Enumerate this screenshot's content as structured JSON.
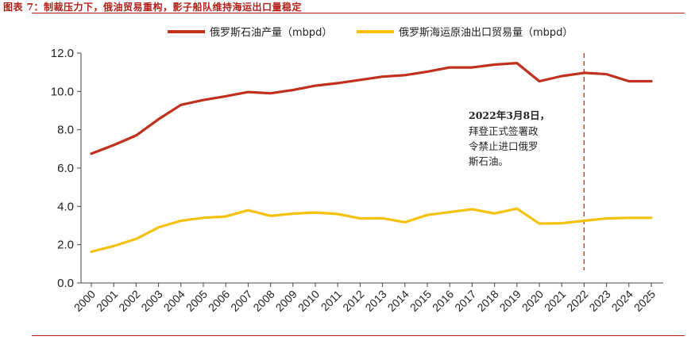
{
  "figure": {
    "title": "图表 7：制裁压力下，俄油贸易重构，影子船队维持海运出口量稳定"
  },
  "chart_data": {
    "type": "line",
    "x": [
      "2000",
      "2001",
      "2002",
      "2003",
      "2004",
      "2005",
      "2006",
      "2007",
      "2008",
      "2009",
      "2010",
      "2011",
      "2012",
      "2013",
      "2014",
      "2015",
      "2016",
      "2017",
      "2018",
      "2019",
      "2020",
      "2021",
      "2022",
      "2023",
      "2024",
      "2025"
    ],
    "series": [
      {
        "name": "俄罗斯石油产量（mbpd）",
        "color": "#c0301c",
        "values": [
          6.75,
          7.2,
          7.7,
          8.55,
          9.3,
          9.55,
          9.75,
          9.97,
          9.9,
          10.07,
          10.3,
          10.43,
          10.6,
          10.77,
          10.85,
          11.03,
          11.25,
          11.25,
          11.4,
          11.48,
          10.53,
          10.8,
          10.97,
          10.9,
          10.53,
          10.53
        ]
      },
      {
        "name": "俄罗斯海运原油出口贸易量（mbpd）",
        "color": "#f4c20d",
        "values": [
          1.63,
          1.93,
          2.3,
          2.9,
          3.25,
          3.4,
          3.47,
          3.8,
          3.5,
          3.62,
          3.68,
          3.6,
          3.37,
          3.38,
          3.17,
          3.55,
          3.7,
          3.85,
          3.63,
          3.88,
          3.1,
          3.12,
          3.25,
          3.37,
          3.4,
          3.4
        ]
      }
    ],
    "y_ticks": [
      "0.0",
      "2.0",
      "4.0",
      "6.0",
      "8.0",
      "10.0",
      "12.0"
    ],
    "ylim": [
      0,
      12
    ],
    "legend_position": "top-center",
    "marker_line": {
      "x": "2022",
      "style": "dashed",
      "color": "#c0301c"
    },
    "annotation": {
      "heading": "2022年3月8日，",
      "lines": [
        "拜登正式签署政",
        "令禁止进口俄罗",
        "斯石油。"
      ]
    }
  }
}
